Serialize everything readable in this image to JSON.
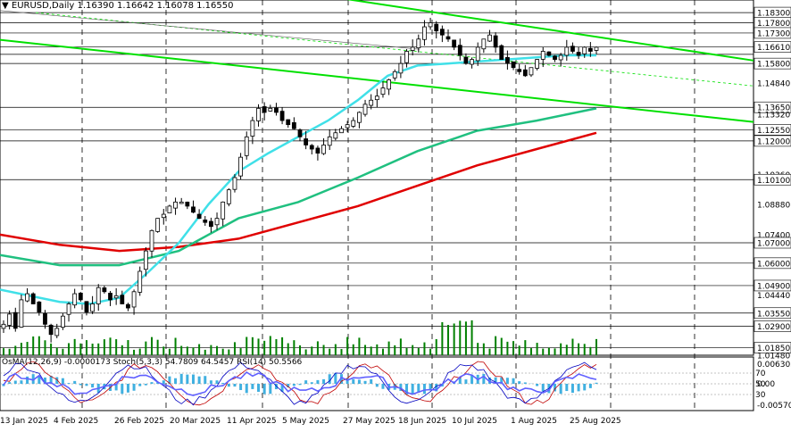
{
  "header": {
    "symbol": "EURUSD,Daily",
    "ohlc": "1.16390 1.16642 1.16078 1.16550"
  },
  "indicators": {
    "osma": "OsMA(12,26,9) -0.0000173",
    "stoch": "Stoch(5,3,3) 54.7809 64.5457",
    "rsi": "RSI(14) 50.5566"
  },
  "colors": {
    "candle": "#000000",
    "volume": "#008000",
    "trend_line": "#00e000",
    "ma_fast": "#40e0e8",
    "ma_mid": "#20c080",
    "ma_slow": "#e00000",
    "osma_hist": "#40b0e0",
    "stoch_main": "#0000c0",
    "stoch_signal": "#c00000",
    "rsi": "#6060ff"
  },
  "chart_data": {
    "type": "candlestick",
    "ylim": [
      1.0148,
      1.1883
    ],
    "price_labels": [
      "1.18300",
      "1.17800",
      "1.17300",
      "1.16610",
      "1.15800",
      "1.14840",
      "1.13650",
      "1.13320",
      "1.12550",
      "1.12000",
      "1.10360",
      "1.10100",
      "1.08880",
      "1.07400",
      "1.07000",
      "1.06000",
      "1.04900",
      "1.04440",
      "1.03550",
      "1.02900",
      "1.01850",
      "1.01480"
    ],
    "level_lines": [
      1.183,
      1.178,
      1.173,
      1.1661,
      1.1625,
      1.158,
      1.1365,
      1.1255,
      1.12,
      1.101,
      1.07,
      1.06,
      1.049,
      1.0355,
      1.029,
      1.0185
    ],
    "date_labels": [
      "13 Jan 2025",
      "4 Feb 2025",
      "26 Feb 2025",
      "20 Mar 2025",
      "11 Apr 2025",
      "5 May 2025",
      "27 May 2025",
      "18 Jun 2025",
      "10 Jul 2025",
      "1 Aug 2025",
      "25 Aug 2025"
    ],
    "path_closes": [
      1.03,
      1.035,
      1.028,
      1.042,
      1.045,
      1.04,
      1.036,
      1.03,
      1.025,
      1.028,
      1.034,
      1.04,
      1.045,
      1.042,
      1.036,
      1.04,
      1.048,
      1.046,
      1.042,
      1.044,
      1.04,
      1.038,
      1.046,
      1.056,
      1.066,
      1.076,
      1.082,
      1.084,
      1.088,
      1.09,
      1.09,
      1.088,
      1.085,
      1.082,
      1.08,
      1.078,
      1.082,
      1.09,
      1.096,
      1.102,
      1.112,
      1.122,
      1.13,
      1.136,
      1.134,
      1.136,
      1.134,
      1.13,
      1.128,
      1.126,
      1.122,
      1.118,
      1.116,
      1.114,
      1.118,
      1.122,
      1.124,
      1.126,
      1.128,
      1.13,
      1.134,
      1.138,
      1.14,
      1.142,
      1.146,
      1.15,
      1.154,
      1.158,
      1.164,
      1.166,
      1.17,
      1.176,
      1.178,
      1.174,
      1.172,
      1.17,
      1.166,
      1.162,
      1.158,
      1.16,
      1.166,
      1.17,
      1.172,
      1.166,
      1.16,
      1.158,
      1.156,
      1.154,
      1.152,
      1.156,
      1.16,
      1.164,
      1.162,
      1.16,
      1.162,
      1.166,
      1.164,
      1.162,
      1.166,
      1.164,
      1.166
    ],
    "trend_lines": [
      {
        "p1": [
          "13 Jan 2025",
          1.1685
        ],
        "p2": [
          "25 Aug 2025",
          1.138
        ]
      },
      {
        "p1": [
          "27 May 2025",
          1.1883
        ],
        "p2": [
          "25 Aug 2025",
          1.1715
        ]
      }
    ],
    "ma_fast_points": [
      [
        0,
        1.047
      ],
      [
        0.05,
        1.044
      ],
      [
        0.1,
        1.041
      ],
      [
        0.15,
        1.04
      ],
      [
        0.2,
        1.043
      ],
      [
        0.25,
        1.056
      ],
      [
        0.3,
        1.07
      ],
      [
        0.35,
        1.089
      ],
      [
        0.4,
        1.105
      ],
      [
        0.45,
        1.114
      ],
      [
        0.5,
        1.122
      ],
      [
        0.55,
        1.13
      ],
      [
        0.6,
        1.14
      ],
      [
        0.65,
        1.152
      ],
      [
        0.7,
        1.157
      ],
      [
        0.75,
        1.158
      ],
      [
        0.8,
        1.159
      ],
      [
        0.85,
        1.16
      ],
      [
        0.9,
        1.161
      ],
      [
        0.95,
        1.162
      ],
      [
        1.0,
        1.162
      ]
    ],
    "ma_mid_points": [
      [
        0,
        1.064
      ],
      [
        0.1,
        1.059
      ],
      [
        0.2,
        1.059
      ],
      [
        0.3,
        1.066
      ],
      [
        0.4,
        1.082
      ],
      [
        0.5,
        1.09
      ],
      [
        0.6,
        1.102
      ],
      [
        0.7,
        1.115
      ],
      [
        0.8,
        1.125
      ],
      [
        0.9,
        1.13
      ],
      [
        1.0,
        1.136
      ]
    ],
    "ma_slow_points": [
      [
        0,
        1.074
      ],
      [
        0.1,
        1.069
      ],
      [
        0.2,
        1.066
      ],
      [
        0.3,
        1.068
      ],
      [
        0.4,
        1.072
      ],
      [
        0.5,
        1.08
      ],
      [
        0.6,
        1.088
      ],
      [
        0.7,
        1.098
      ],
      [
        0.8,
        1.108
      ],
      [
        0.9,
        1.116
      ],
      [
        1.0,
        1.124
      ]
    ],
    "osma_labels": [
      "0.006303",
      "0.00",
      "-0.005702"
    ],
    "stoch_rsi_levels": [
      "70",
      "50",
      "30"
    ],
    "grid": true
  }
}
